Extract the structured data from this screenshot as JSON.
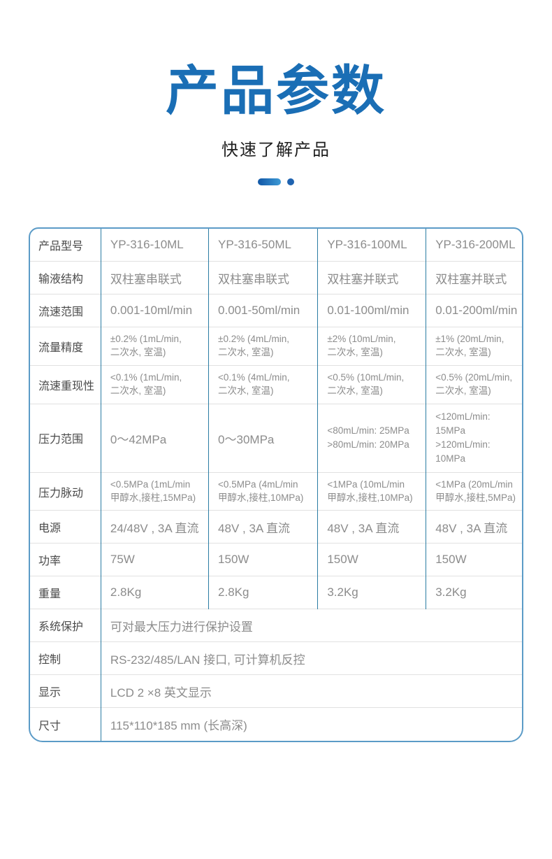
{
  "header": {
    "title": "产品参数",
    "subtitle": "快速了解产品"
  },
  "colors": {
    "title_blue": "#1a6eb5",
    "table_outer_border": "#5b9bc7",
    "table_vertical_divider": "#2b7ca3",
    "table_horizontal_line": "#e1e1e1",
    "label_text": "#4a4a4a",
    "value_text": "#8c8c8c",
    "divider_dash_gradient": [
      "#1157a6",
      "#3e9ad6"
    ],
    "divider_dot": "#1f63b0"
  },
  "table": {
    "header_label": "产品型号",
    "models": [
      "YP-316-10ML",
      "YP-316-50ML",
      "YP-316-100ML",
      "YP-316-200ML"
    ],
    "rows": [
      {
        "label": "输液结构",
        "values": [
          "双柱塞串联式",
          "双柱塞串联式",
          "双柱塞并联式",
          "双柱塞并联式"
        ]
      },
      {
        "label": "流速范围",
        "values": [
          "0.001-10ml/min",
          "0.001-50ml/min",
          "0.01-100ml/min",
          "0.01-200ml/min"
        ]
      },
      {
        "label": "流量精度",
        "small": true,
        "values": [
          "±0.2% (1mL/min,\n二次水, 室温)",
          "±0.2% (4mL/min,\n二次水, 室温)",
          "±2% (10mL/min,\n二次水, 室温)",
          "±1% (20mL/min,\n二次水, 室温)"
        ]
      },
      {
        "label": "流速重现性",
        "small": true,
        "values": [
          "<0.1% (1mL/min,\n二次水, 室温)",
          "<0.1% (4mL/min,\n二次水, 室温)",
          "<0.5% (10mL/min,\n二次水, 室温)",
          "<0.5% (20mL/min,\n二次水, 室温)"
        ]
      },
      {
        "label": "压力范围",
        "values": [
          "0～42MPa",
          "0～30MPa",
          "<80mL/min: 25MPa\n>80mL/min: 20MPa",
          "<120mL/min: 15MPa\n>120mL/min: 10MPa"
        ]
      },
      {
        "label": "压力脉动",
        "small": true,
        "values": [
          "<0.5MPa (1mL/min\n甲醇水,接柱,15MPa)",
          "<0.5MPa (4mL/min\n甲醇水,接柱,10MPa)",
          "<1MPa (10mL/min\n甲醇水,接柱,10MPa)",
          "<1MPa (20mL/min\n甲醇水,接柱,5MPa)"
        ]
      },
      {
        "label": "电源",
        "values": [
          "24/48V , 3A 直流",
          "48V , 3A 直流",
          "48V , 3A 直流",
          "48V , 3A 直流"
        ]
      },
      {
        "label": "功率",
        "values": [
          "75W",
          "150W",
          "150W",
          "150W"
        ]
      },
      {
        "label": "重量",
        "values": [
          "2.8Kg",
          "2.8Kg",
          "3.2Kg",
          "3.2Kg"
        ]
      }
    ],
    "span_rows": [
      {
        "label": "系统保护",
        "value": "可对最大压力进行保护设置"
      },
      {
        "label": "控制",
        "value": "RS-232/485/LAN 接口, 可计算机反控"
      },
      {
        "label": "显示",
        "value": "LCD 2 ×8 英文显示"
      },
      {
        "label": "尺寸",
        "value": "115*110*185 mm (长高深)"
      }
    ]
  }
}
